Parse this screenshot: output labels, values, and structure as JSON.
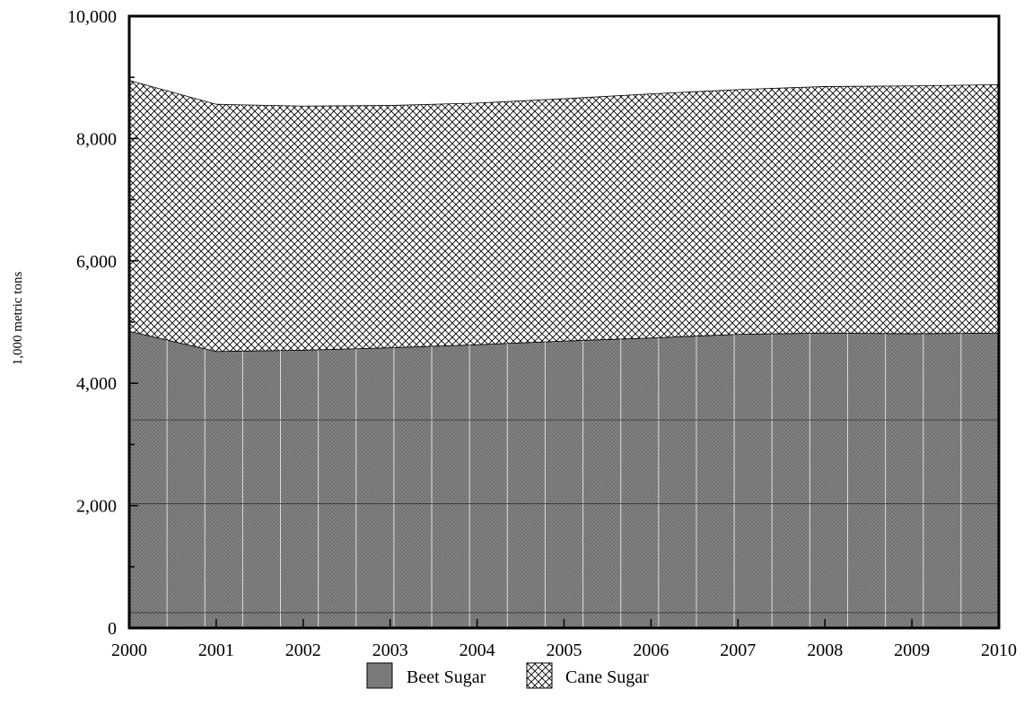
{
  "chart_data": {
    "type": "area",
    "stacked": true,
    "x": [
      2000,
      2001,
      2002,
      2003,
      2004,
      2005,
      2006,
      2007,
      2008,
      2009,
      2010
    ],
    "series": [
      {
        "name": "Beet Sugar",
        "values": [
          4850,
          4520,
          4540,
          4580,
          4630,
          4690,
          4740,
          4800,
          4820,
          4810,
          4820
        ],
        "fill": "#808080",
        "pattern": "fine-grid"
      },
      {
        "name": "Cane Sugar",
        "values": [
          4100,
          4040,
          3990,
          3960,
          3950,
          3960,
          3990,
          4000,
          4030,
          4050,
          4060
        ],
        "fill": "#ffffff",
        "pattern": "crosshatch"
      }
    ],
    "xlabel": "",
    "ylabel": "1,000 metric tons",
    "xlim": [
      2000,
      2010
    ],
    "ylim": [
      0,
      10000
    ],
    "y_ticks": [
      0,
      2000,
      4000,
      6000,
      8000,
      10000
    ],
    "y_tick_labels": [
      "0",
      "2,000",
      "4,000",
      "6,000",
      "8,000",
      "10,000"
    ],
    "x_tick_labels": [
      "2000",
      "2001",
      "2002",
      "2003",
      "2004",
      "2005",
      "2006",
      "2007",
      "2008",
      "2009",
      "2010"
    ],
    "grid": false,
    "legend_position": "bottom-center"
  }
}
